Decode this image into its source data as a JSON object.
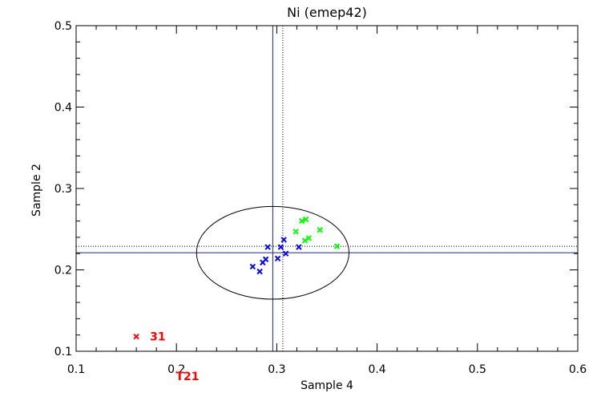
{
  "chart_data": {
    "type": "scatter",
    "title": "Ni (emep42)",
    "xlabel": "Sample 4",
    "ylabel": "Sample 2",
    "xlim": [
      0.1,
      0.6
    ],
    "ylim": [
      0.1,
      0.5
    ],
    "xticks": [
      "0.1",
      "0.2",
      "0.3",
      "0.4",
      "0.5",
      "0.6"
    ],
    "yticks": [
      "0.1",
      "0.2",
      "0.3",
      "0.4",
      "0.5"
    ],
    "grid": false,
    "reference_lines": {
      "solid_x": 0.296,
      "solid_y": 0.221,
      "dotted_x": 0.306,
      "dotted_y": 0.229
    },
    "ellipse": {
      "cx": 0.296,
      "cy": 0.221,
      "rx": 0.076,
      "ry": 0.057
    },
    "series": [
      {
        "color": "#0000ff",
        "points": [
          [
            0.276,
            0.204
          ],
          [
            0.283,
            0.198
          ],
          [
            0.286,
            0.209
          ],
          [
            0.289,
            0.213
          ],
          [
            0.291,
            0.228
          ],
          [
            0.301,
            0.214
          ],
          [
            0.304,
            0.228
          ],
          [
            0.307,
            0.237
          ],
          [
            0.309,
            0.22
          ],
          [
            0.322,
            0.228
          ]
        ]
      },
      {
        "color": "#00ff00",
        "points": [
          [
            0.319,
            0.247
          ],
          [
            0.325,
            0.26
          ],
          [
            0.329,
            0.262
          ],
          [
            0.328,
            0.236
          ],
          [
            0.332,
            0.239
          ],
          [
            0.343,
            0.249
          ],
          [
            0.36,
            0.229
          ]
        ]
      },
      {
        "color": "#ff0000",
        "points": [
          [
            0.16,
            0.118
          ]
        ],
        "labels": [
          "31"
        ]
      }
    ],
    "annotation": {
      "text": "T21",
      "color": "#ff0000"
    }
  }
}
